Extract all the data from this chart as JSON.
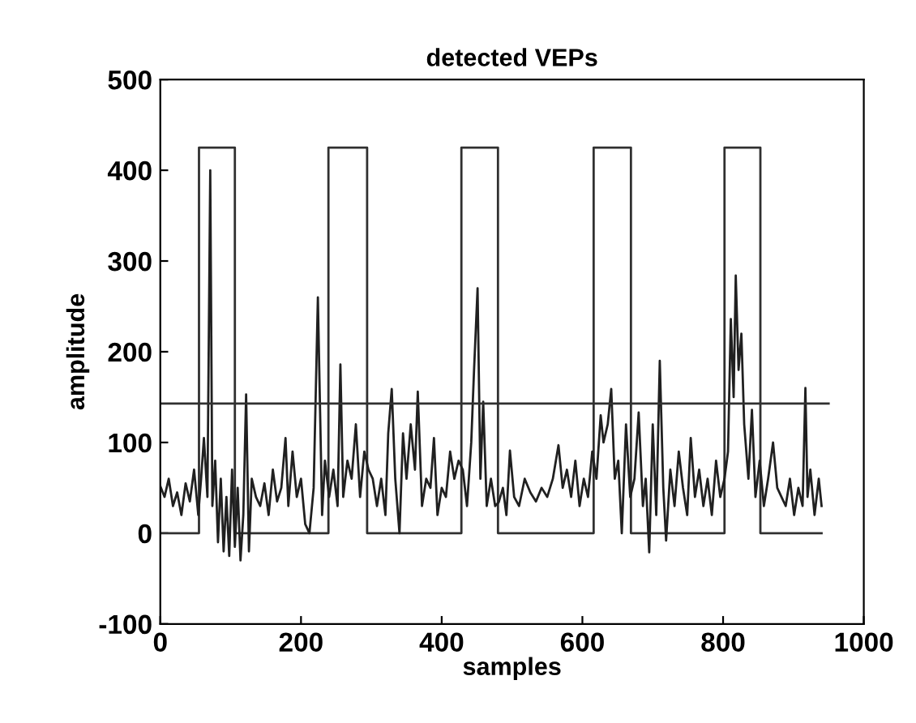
{
  "chart_data": {
    "type": "line",
    "title": "detected VEPs",
    "xlabel": "samples",
    "ylabel": "amplitude",
    "xlim": [
      0,
      1000
    ],
    "ylim": [
      -100,
      500
    ],
    "xticks": [
      0,
      200,
      400,
      600,
      800,
      1000
    ],
    "yticks": [
      -100,
      0,
      100,
      200,
      300,
      400,
      500
    ],
    "grid": false,
    "legend": false,
    "marker": "none",
    "line_style": "solid",
    "series": [
      {
        "type": "step",
        "color": "#303030",
        "x": [
          0,
          55,
          106,
          239,
          294,
          428,
          480,
          616,
          669,
          802,
          853,
          940
        ],
        "values": [
          0,
          425,
          0,
          425,
          0,
          425,
          0,
          425,
          0,
          425,
          0,
          0
        ]
      },
      {
        "color": "#202020",
        "x": [
          0,
          6,
          12,
          18,
          24,
          30,
          36,
          42,
          48,
          54,
          58,
          62,
          67,
          71,
          74,
          78,
          82,
          86,
          90,
          94,
          98,
          102,
          106,
          110,
          114,
          118,
          122,
          126,
          130,
          136,
          142,
          148,
          154,
          160,
          166,
          172,
          178,
          182,
          188,
          194,
          200,
          206,
          212,
          218,
          224,
          230,
          234,
          240,
          246,
          252,
          256,
          260,
          266,
          272,
          278,
          284,
          290,
          296,
          302,
          308,
          314,
          320,
          324,
          329,
          334,
          340,
          345,
          350,
          356,
          362,
          366,
          372,
          378,
          384,
          389,
          394,
          400,
          406,
          412,
          418,
          424,
          430,
          436,
          442,
          446,
          451,
          455,
          459,
          464,
          470,
          476,
          481,
          487,
          492,
          497,
          503,
          510,
          518,
          526,
          534,
          542,
          550,
          558,
          566,
          572,
          578,
          584,
          590,
          596,
          602,
          608,
          614,
          620,
          626,
          630,
          636,
          641,
          646,
          651,
          656,
          662,
          668,
          674,
          680,
          686,
          690,
          695,
          700,
          705,
          710,
          715,
          719,
          725,
          731,
          737,
          743,
          749,
          754,
          760,
          766,
          772,
          778,
          784,
          790,
          796,
          802,
          807,
          811,
          815,
          818,
          822,
          826,
          830,
          836,
          841,
          846,
          852,
          858,
          864,
          871,
          877,
          883,
          889,
          895,
          901,
          907,
          913,
          917,
          920,
          924,
          930,
          936,
          940
        ],
        "values": [
          52,
          40,
          60,
          30,
          45,
          20,
          55,
          35,
          70,
          20,
          60,
          105,
          40,
          400,
          30,
          80,
          -10,
          60,
          -20,
          40,
          -25,
          70,
          -15,
          50,
          -30,
          20,
          153,
          -20,
          60,
          40,
          30,
          55,
          20,
          70,
          35,
          50,
          105,
          30,
          90,
          40,
          60,
          10,
          0,
          50,
          260,
          20,
          80,
          40,
          70,
          30,
          186,
          40,
          80,
          60,
          120,
          40,
          90,
          70,
          60,
          30,
          60,
          20,
          110,
          159,
          60,
          0,
          110,
          60,
          120,
          70,
          156,
          30,
          60,
          50,
          105,
          20,
          50,
          40,
          90,
          60,
          80,
          70,
          30,
          100,
          180,
          270,
          60,
          145,
          30,
          60,
          30,
          34,
          50,
          20,
          91,
          40,
          30,
          60,
          45,
          35,
          50,
          40,
          60,
          97,
          50,
          70,
          40,
          80,
          30,
          60,
          40,
          90,
          60,
          130,
          100,
          120,
          159,
          60,
          80,
          0,
          120,
          40,
          60,
          133,
          30,
          60,
          -21,
          120,
          20,
          190,
          50,
          -8,
          70,
          30,
          90,
          50,
          20,
          105,
          40,
          70,
          30,
          60,
          20,
          80,
          40,
          60,
          90,
          236,
          150,
          284,
          180,
          220,
          120,
          60,
          136,
          40,
          80,
          30,
          60,
          100,
          50,
          40,
          30,
          60,
          20,
          50,
          30,
          160,
          40,
          70,
          20,
          60,
          30
        ]
      },
      {
        "color": "#303030",
        "x": [
          0,
          950
        ],
        "values": [
          143,
          143
        ]
      }
    ]
  }
}
